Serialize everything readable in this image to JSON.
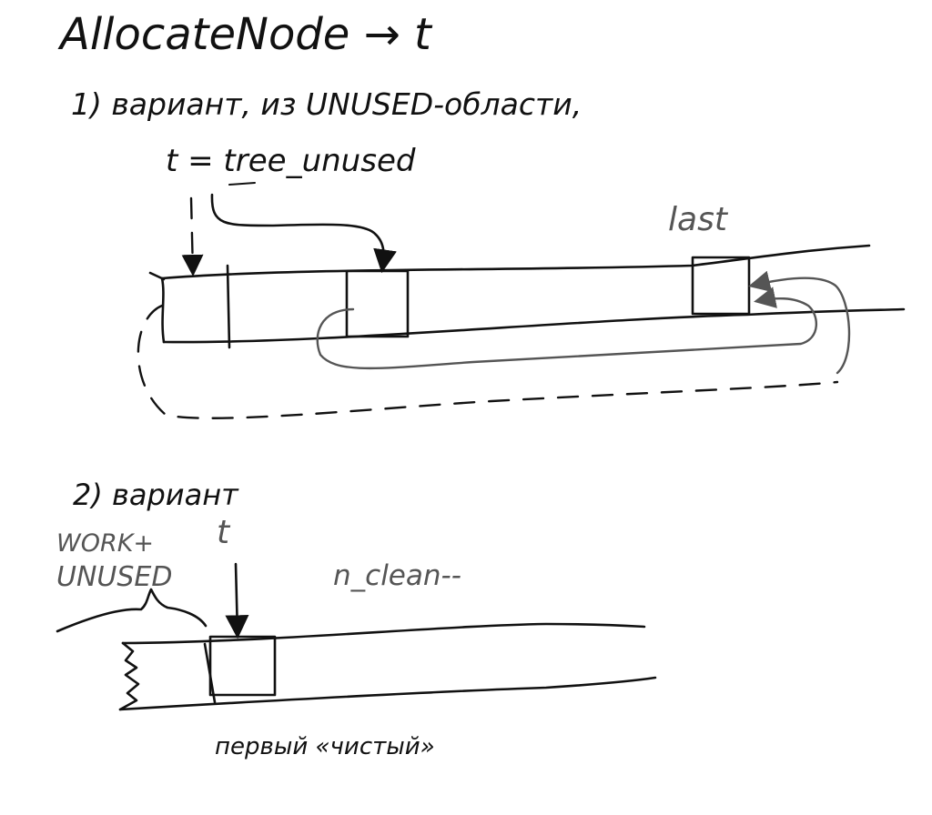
{
  "diagram": {
    "title": "AllocateNode → t",
    "variant1": {
      "heading": "1) вариант, из UNUSED-области,",
      "assignment": "t = tree_unused",
      "last_label": "last"
    },
    "variant2": {
      "heading": "2) вариант",
      "brace_label_line1": "WORK+",
      "brace_label_line2": "UNUSED",
      "t_label": "t",
      "counter_label": "n_clean--",
      "first_clean_label": "первый «чистый»"
    }
  }
}
